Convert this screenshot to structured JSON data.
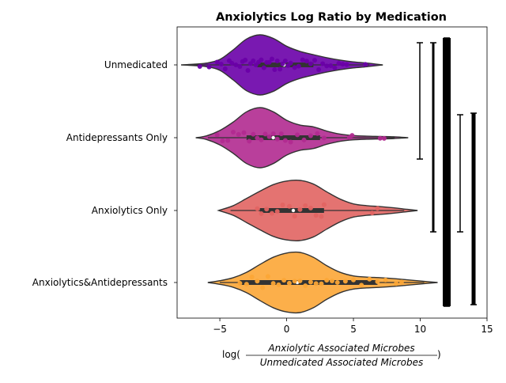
{
  "chart_data": {
    "type": "violin",
    "title": "Anxiolytics Log Ratio by Medication",
    "xlabel": {
      "prefix": "log(",
      "numerator": "Anxiolytic Associated Microbes",
      "denominator": "Unmedicated Associated Microbes",
      "suffix": ")"
    },
    "ylabel": "",
    "xlim": [
      -8.2,
      15
    ],
    "xticks": [
      -5,
      0,
      5,
      10,
      15
    ],
    "categories": [
      "Unmedicated",
      "Antidepressants Only",
      "Anxiolytics Only",
      "Anxiolytics&Antidepressants"
    ],
    "violins": [
      {
        "name": "Unmedicated",
        "color": "#6a00a8",
        "range": [
          -7.9,
          7.2
        ],
        "median": -0.2,
        "q1": -2.2,
        "q3": 2.0,
        "shape": [
          [
            -7.9,
            0.0
          ],
          [
            -7.0,
            0.02
          ],
          [
            -6.0,
            0.06
          ],
          [
            -5.0,
            0.18
          ],
          [
            -4.0,
            0.5
          ],
          [
            -3.0,
            0.86
          ],
          [
            -2.0,
            1.0
          ],
          [
            -1.0,
            0.88
          ],
          [
            0.0,
            0.62
          ],
          [
            1.0,
            0.45
          ],
          [
            2.0,
            0.34
          ],
          [
            3.0,
            0.24
          ],
          [
            4.0,
            0.16
          ],
          [
            5.0,
            0.1
          ],
          [
            6.0,
            0.06
          ],
          [
            7.2,
            0.0
          ]
        ],
        "points": [
          -6.5,
          -5.8,
          -5.2,
          -4.9,
          -4.6,
          -4.3,
          -4.1,
          -3.8,
          -3.5,
          -3.3,
          -3.1,
          -2.9,
          -2.7,
          -2.5,
          -2.3,
          -2.1,
          -1.9,
          -1.7,
          -1.5,
          -1.3,
          -1.1,
          -0.9,
          -0.7,
          -0.5,
          -0.3,
          -0.1,
          0.1,
          0.3,
          0.6,
          0.9,
          1.2,
          1.5,
          1.8,
          2.1,
          2.4,
          2.7,
          3.0,
          3.3,
          3.6,
          3.9,
          4.2,
          4.5,
          5.9
        ]
      },
      {
        "name": "Antidepressants Only",
        "color": "#b12a90",
        "range": [
          -6.8,
          9.1
        ],
        "median": -1.0,
        "q1": -3.0,
        "q3": 2.5,
        "shape": [
          [
            -6.8,
            0.0
          ],
          [
            -6.0,
            0.06
          ],
          [
            -5.0,
            0.24
          ],
          [
            -4.0,
            0.52
          ],
          [
            -3.0,
            0.86
          ],
          [
            -2.0,
            1.0
          ],
          [
            -1.0,
            0.86
          ],
          [
            0.0,
            0.58
          ],
          [
            1.0,
            0.42
          ],
          [
            2.0,
            0.36
          ],
          [
            3.0,
            0.22
          ],
          [
            4.0,
            0.12
          ],
          [
            5.0,
            0.07
          ],
          [
            6.0,
            0.05
          ],
          [
            7.0,
            0.04
          ],
          [
            8.0,
            0.03
          ],
          [
            9.1,
            0.0
          ]
        ],
        "points": [
          -5.2,
          -4.8,
          -4.4,
          -4.0,
          -3.6,
          -3.2,
          -2.8,
          -2.5,
          -2.2,
          -1.9,
          -1.6,
          -1.3,
          -1.0,
          -0.7,
          -0.4,
          -0.1,
          0.3,
          0.8,
          1.3,
          1.8,
          2.3,
          2.8,
          4.7,
          4.9,
          7.0,
          7.3
        ]
      },
      {
        "name": "Anxiolytics Only",
        "color": "#e16462",
        "range": [
          -5.1,
          9.8
        ],
        "median": 0.5,
        "q1": -2.0,
        "q3": 2.8,
        "shape": [
          [
            -5.1,
            0.0
          ],
          [
            -4.0,
            0.16
          ],
          [
            -3.0,
            0.4
          ],
          [
            -2.0,
            0.64
          ],
          [
            -1.0,
            0.86
          ],
          [
            0.0,
            0.98
          ],
          [
            1.0,
            1.0
          ],
          [
            2.0,
            0.88
          ],
          [
            3.0,
            0.62
          ],
          [
            4.0,
            0.38
          ],
          [
            5.0,
            0.22
          ],
          [
            6.0,
            0.16
          ],
          [
            7.0,
            0.13
          ],
          [
            8.0,
            0.09
          ],
          [
            9.0,
            0.04
          ],
          [
            9.8,
            0.0
          ]
        ],
        "points": [
          -2.2,
          -1.9,
          -1.5,
          -1.1,
          -0.7,
          -0.3,
          0.2,
          0.6,
          1.0,
          1.4,
          1.8,
          2.2,
          2.6,
          2.8,
          6.4,
          6.8
        ]
      },
      {
        "name": "Anxiolytics&Antidepressants",
        "color": "#fca636",
        "range": [
          -5.9,
          11.3
        ],
        "median": 0.8,
        "q1": -3.5,
        "q3": 6.8,
        "shape": [
          [
            -5.9,
            0.0
          ],
          [
            -5.0,
            0.06
          ],
          [
            -4.0,
            0.16
          ],
          [
            -3.0,
            0.34
          ],
          [
            -2.0,
            0.6
          ],
          [
            -1.0,
            0.84
          ],
          [
            0.0,
            0.98
          ],
          [
            1.0,
            1.0
          ],
          [
            2.0,
            0.84
          ],
          [
            3.0,
            0.56
          ],
          [
            4.0,
            0.34
          ],
          [
            5.0,
            0.22
          ],
          [
            6.0,
            0.18
          ],
          [
            7.0,
            0.16
          ],
          [
            8.0,
            0.13
          ],
          [
            9.0,
            0.09
          ],
          [
            10.0,
            0.05
          ],
          [
            11.3,
            0.0
          ]
        ],
        "points": [
          -3.5,
          -3.0,
          -2.6,
          -2.2,
          -1.8,
          -1.4,
          -1.0,
          -0.6,
          -0.2,
          0.2,
          0.6,
          1.0,
          1.4,
          1.8,
          2.2,
          2.6,
          3.0,
          3.4,
          3.8,
          4.4,
          5.0,
          5.6,
          6.2,
          6.8,
          7.4,
          8.2,
          8.6
        ]
      }
    ],
    "bracket_color": "#000000"
  }
}
